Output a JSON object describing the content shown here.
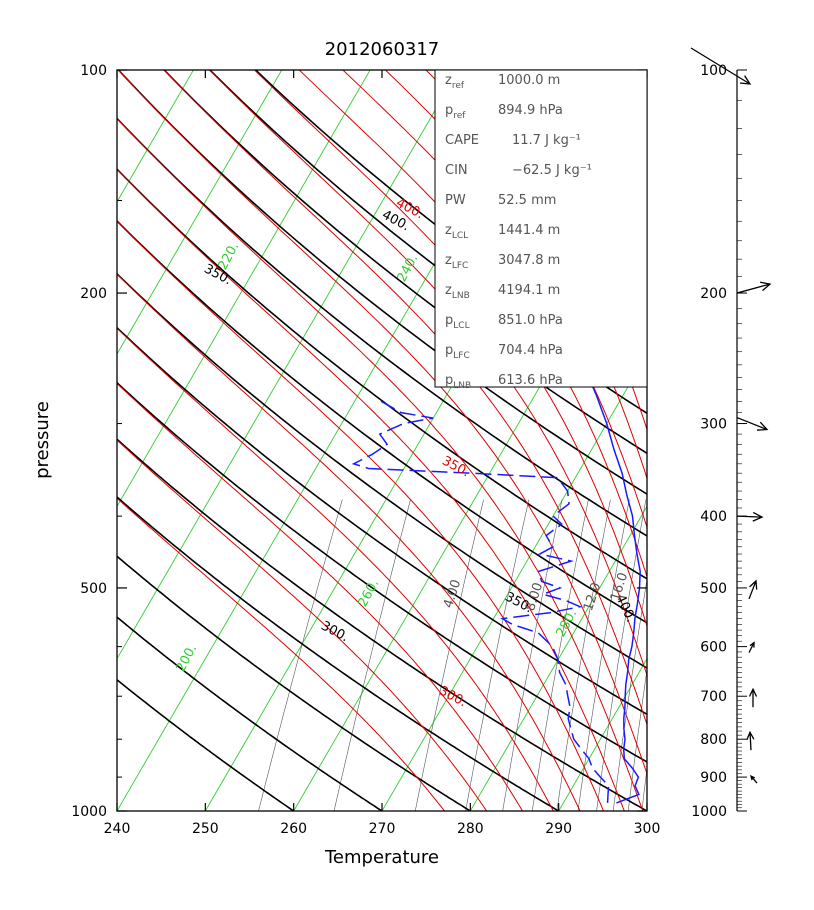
{
  "chart_data": {
    "type": "line",
    "title": "2012060317",
    "xlabel": "Temperature",
    "ylabel": "pressure",
    "xlim": [
      240,
      300
    ],
    "ylim": [
      1000,
      100
    ],
    "y_scale": "log",
    "x_ticks": [
      "240",
      "250",
      "260",
      "270",
      "280",
      "290",
      "300"
    ],
    "y_ticks": [
      "100",
      "200",
      "500",
      "1000"
    ],
    "wind_ticks": [
      "100",
      "200",
      "300",
      "400",
      "500",
      "600",
      "700",
      "800",
      "900",
      "1000"
    ],
    "grid": false,
    "isotherms": [
      200,
      210,
      220,
      230,
      240,
      250,
      260,
      270,
      280,
      290
    ],
    "isotherm_labels": [
      "200.",
      "220.",
      "240.",
      "260.",
      "280."
    ],
    "dry_adiabats": [
      260,
      270,
      280,
      290,
      300,
      310,
      320,
      330,
      340,
      350,
      360,
      370,
      380,
      390,
      400
    ],
    "dry_adiabat_labels": [
      "300.",
      "350.",
      "400."
    ],
    "moist_adiabats": [
      290,
      300,
      310,
      320,
      330,
      340,
      350,
      360,
      370,
      380,
      390,
      400,
      410,
      420,
      430,
      440,
      450,
      460
    ],
    "moist_adiabat_labels": [
      "300.",
      "350.",
      "400."
    ],
    "mixing_ratios": [
      1,
      2,
      4,
      6,
      8,
      10,
      12,
      14,
      16,
      18,
      20,
      22
    ],
    "mixing_ratio_labels": [
      "4.00",
      "8.00",
      "12.0",
      "16.0"
    ],
    "series": [
      {
        "name": "Temperature",
        "points": [
          [
            975,
            296.0
          ],
          [
            950,
            298.0
          ],
          [
            925,
            297.0
          ],
          [
            900,
            296.8
          ],
          [
            875,
            295.5
          ],
          [
            850,
            294.0
          ],
          [
            825,
            293.3
          ],
          [
            800,
            292.8
          ],
          [
            775,
            292.0
          ],
          [
            750,
            291.3
          ],
          [
            725,
            290.7
          ],
          [
            700,
            290.0
          ],
          [
            675,
            289.3
          ],
          [
            650,
            288.7
          ],
          [
            625,
            288.0
          ],
          [
            600,
            287.5
          ],
          [
            575,
            286.8
          ],
          [
            550,
            286.0
          ],
          [
            525,
            285.3
          ],
          [
            500,
            284.5
          ],
          [
            475,
            283.5
          ],
          [
            450,
            282.0
          ],
          [
            425,
            280.5
          ],
          [
            400,
            279.0
          ],
          [
            375,
            277.0
          ],
          [
            350,
            275.0
          ],
          [
            325,
            272.5
          ],
          [
            300,
            270.0
          ],
          [
            275,
            267.0
          ],
          [
            250,
            263.5
          ],
          [
            225,
            260.0
          ],
          [
            200,
            256.5
          ],
          [
            175,
            252.5
          ],
          [
            150,
            248.0
          ],
          [
            135,
            244.0
          ],
          [
            125,
            241.0
          ],
          [
            120,
            240.0
          ]
        ]
      },
      {
        "name": "Dewpoint",
        "points": [
          [
            975,
            295.0
          ],
          [
            950,
            294.5
          ],
          [
            925,
            294.0
          ],
          [
            900,
            292.5
          ],
          [
            875,
            291.0
          ],
          [
            850,
            290.0
          ],
          [
            825,
            288.5
          ],
          [
            800,
            287.0
          ],
          [
            775,
            286.0
          ],
          [
            750,
            285.0
          ],
          [
            725,
            284.5
          ],
          [
            700,
            283.5
          ],
          [
            675,
            282.5
          ],
          [
            650,
            281.0
          ],
          [
            625,
            280.0
          ],
          [
            600,
            278.5
          ],
          [
            575,
            276.0
          ],
          [
            560,
            272.5
          ],
          [
            550,
            271.0
          ],
          [
            540,
            276.0
          ],
          [
            530,
            279.0
          ],
          [
            520,
            277.0
          ],
          [
            510,
            274.0
          ],
          [
            500,
            275.5
          ],
          [
            490,
            273.0
          ],
          [
            475,
            272.0
          ],
          [
            460,
            275.0
          ],
          [
            450,
            271.0
          ],
          [
            440,
            272.0
          ],
          [
            425,
            270.5
          ],
          [
            410,
            271.5
          ],
          [
            400,
            270.0
          ],
          [
            385,
            271.0
          ],
          [
            370,
            270.0
          ],
          [
            355,
            268.0
          ],
          [
            350,
            258.0
          ],
          [
            345,
            246.0
          ],
          [
            340,
            244.0
          ],
          [
            330,
            245.5
          ],
          [
            320,
            246.5
          ],
          [
            310,
            245.0
          ],
          [
            300,
            247.0
          ],
          [
            295,
            250.0
          ],
          [
            290,
            246.0
          ],
          [
            280,
            243.0
          ]
        ]
      }
    ],
    "wind_barbs": [
      {
        "p": 100,
        "speed": "long"
      },
      {
        "p": 200,
        "speed": "medium"
      },
      {
        "p": 300,
        "speed": "medium"
      },
      {
        "p": 400,
        "speed": "short"
      },
      {
        "p": 500,
        "speed": "short"
      },
      {
        "p": 600,
        "speed": "short"
      },
      {
        "p": 700,
        "speed": "short"
      },
      {
        "p": 800,
        "speed": "short"
      },
      {
        "p": 900,
        "speed": "short"
      }
    ]
  },
  "info": [
    {
      "sym": "z",
      "sub": "ref",
      "val": "1000.0 m"
    },
    {
      "sym": "p",
      "sub": "ref",
      "val": "894.9 hPa"
    },
    {
      "sym": "CAPE",
      "sub": "",
      "val": "11.7 J kg⁻¹"
    },
    {
      "sym": "CIN",
      "sub": "",
      "val": "−62.5 J kg⁻¹"
    },
    {
      "sym": "PW",
      "sub": "",
      "val": "52.5 mm"
    },
    {
      "sym": "z",
      "sub": "LCL",
      "val": "1441.4 m"
    },
    {
      "sym": "z",
      "sub": "LFC",
      "val": "3047.8 m"
    },
    {
      "sym": "z",
      "sub": "LNB",
      "val": "4194.1 m"
    },
    {
      "sym": "p",
      "sub": "LCL",
      "val": "851.0 hPa"
    },
    {
      "sym": "p",
      "sub": "LFC",
      "val": "704.4 hPa"
    },
    {
      "sym": "p",
      "sub": "LNB",
      "val": "613.6 hPa"
    }
  ],
  "colors": {
    "temperature": "#1a1aff",
    "dewpoint": "#1a1aff",
    "isotherm": "#33cc33",
    "dry_adiabat": "#000000",
    "moist_adiabat": "#e00000",
    "mixing_ratio": "#555555",
    "axis": "#000000"
  }
}
